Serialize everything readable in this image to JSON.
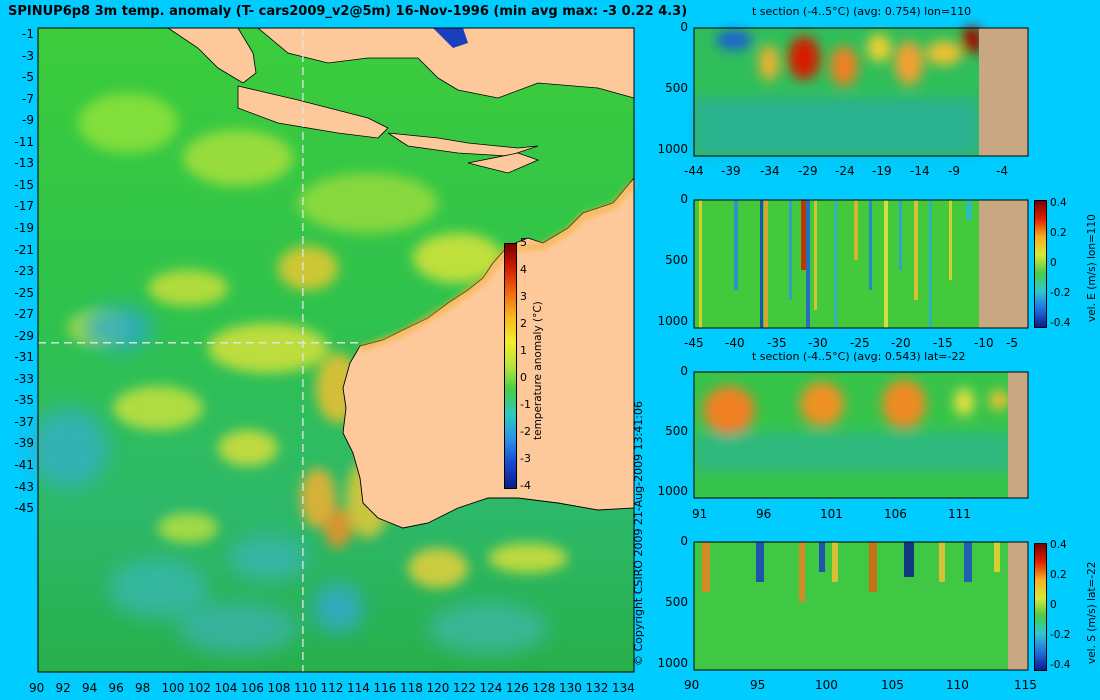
{
  "main_title": "SPINUP6p8 3m temp. anomaly (T- cars2009_v2@5m) 16-Nov-1996 (min avg max: -3 0.22 4.3)",
  "copyright": "© Copyright CSIRO 2009  21-Aug-2009 13:41:06",
  "colors": {
    "background": "#00ccff",
    "land": "#fdc99b",
    "ocean_green": "#33cc33",
    "section_land": "#c8a882",
    "crosshair": "#e6e6e6"
  },
  "chart_data": [
    {
      "type": "heatmap",
      "name": "map",
      "x_ticks": [
        "90",
        "92",
        "94",
        "96",
        "98",
        "100",
        "102",
        "104",
        "106",
        "108",
        "110",
        "112",
        "114",
        "116",
        "118",
        "120",
        "122",
        "124",
        "126",
        "128",
        "130",
        "132",
        "134"
      ],
      "y_ticks": [
        "-1",
        "-3",
        "-5",
        "-7",
        "-9",
        "-11",
        "-13",
        "-15",
        "-17",
        "-19",
        "-21",
        "-23",
        "-25",
        "-27",
        "-29",
        "-31",
        "-33",
        "-35",
        "-37",
        "-39",
        "-41",
        "-43",
        "-45"
      ],
      "xlim": [
        90,
        135
      ],
      "ylim": [
        -45,
        0
      ],
      "crosshair": {
        "lon": 110,
        "lat": -22
      },
      "colorbar": {
        "label": "temperature anomaly (°C)",
        "ticks": [
          "5",
          "4",
          "3",
          "2",
          "1",
          "0",
          "-1",
          "-2",
          "-3",
          "-4"
        ],
        "range": [
          -4,
          5
        ]
      }
    },
    {
      "type": "heatmap",
      "name": "t-section-lon",
      "title": "t section (-4..5°C) (avg: 0.754) lon=110",
      "x_ticks": [
        "-44",
        "-39",
        "-34",
        "-29",
        "-24",
        "-19",
        "-14",
        "-9",
        "-4"
      ],
      "y_ticks": [
        "0",
        "500",
        "1000"
      ]
    },
    {
      "type": "heatmap",
      "name": "vel-e-section",
      "x_ticks": [
        "-45",
        "-40",
        "-35",
        "-30",
        "-25",
        "-20",
        "-15",
        "-10",
        "-5"
      ],
      "y_ticks": [
        "0",
        "500",
        "1000"
      ],
      "colorbar": {
        "label": "vel. E (m/s) lon=110",
        "ticks": [
          "0.4",
          "0.2",
          "0",
          "-0.2",
          "-0.4"
        ]
      }
    },
    {
      "type": "heatmap",
      "name": "t-section-lat",
      "title": "t section (-4..5°C) (avg: 0.543) lat=-22",
      "x_ticks": [
        "91",
        "96",
        "101",
        "106",
        "111"
      ],
      "y_ticks": [
        "0",
        "500",
        "1000"
      ]
    },
    {
      "type": "heatmap",
      "name": "vel-s-section",
      "x_ticks": [
        "90",
        "95",
        "100",
        "105",
        "110",
        "115"
      ],
      "y_ticks": [
        "0",
        "500",
        "1000"
      ],
      "colorbar": {
        "label": "vel. S (m/s) lat=-22",
        "ticks": [
          "0.4",
          "0.2",
          "0",
          "-0.2",
          "-0.4"
        ]
      }
    }
  ]
}
